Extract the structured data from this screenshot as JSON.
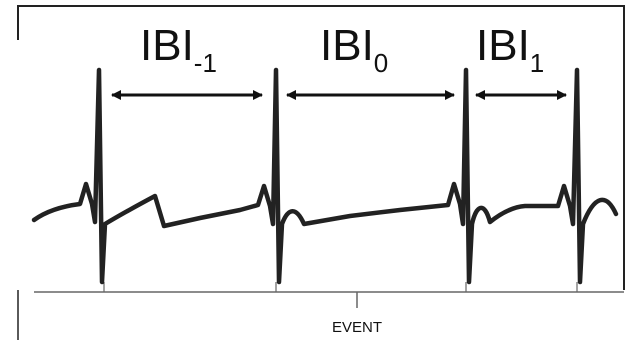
{
  "intervals": [
    {
      "main": "IBI",
      "sub": "-1"
    },
    {
      "main": "IBI",
      "sub": "0"
    },
    {
      "main": "IBI",
      "sub": "1"
    }
  ],
  "event_label": "EVENT",
  "colors": {
    "frame": "#222222",
    "trace": "#222222",
    "baseline": "#666666",
    "text": "#111111"
  }
}
